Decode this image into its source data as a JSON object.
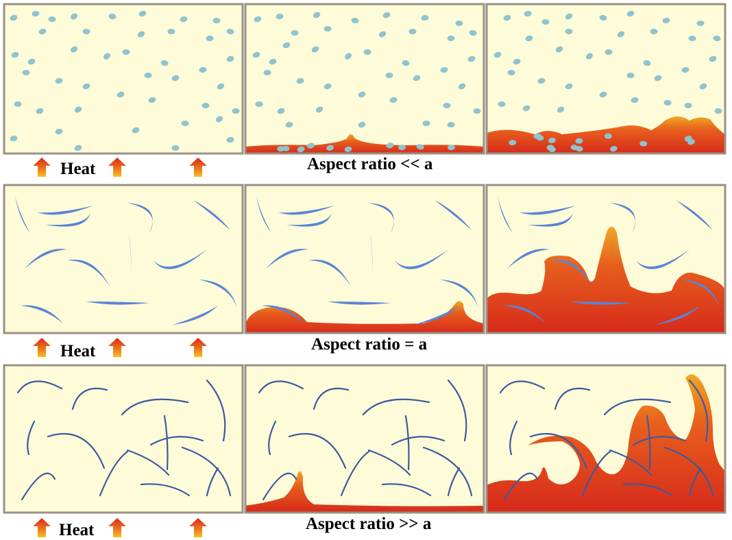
{
  "rows": [
    {
      "heat_label": "Heat",
      "caption": "Aspect ratio << a",
      "filler": "particles"
    },
    {
      "heat_label": "Heat",
      "caption": "Aspect ratio = a",
      "filler": "flakes"
    },
    {
      "heat_label": "Heat",
      "caption": "Aspect ratio >> a",
      "filler": "fibers"
    }
  ],
  "stages_per_row": 3,
  "colors": {
    "background": "#fdfbd8",
    "frame": "#9a9184",
    "particle": "#8fc3cf",
    "flake": "#5b84d6",
    "fiber": "#3c5aa0",
    "melt_dark": "#d9281c",
    "melt_mid": "#e8601d",
    "melt_light": "#f0a826",
    "arrow_top": "#d9281c",
    "arrow_bottom": "#f5b31a"
  }
}
